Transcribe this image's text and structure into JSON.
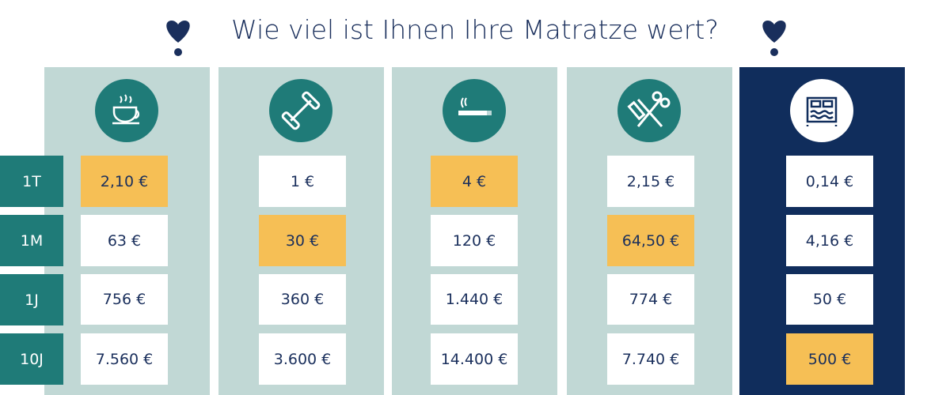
{
  "title": "Wie viel ist Ihnen Ihre Matratze wert?",
  "row_labels": [
    "1T",
    "1M",
    "1J",
    "10J"
  ],
  "highlight_color": "#f6bf55",
  "columns": [
    {
      "cells": [
        "2,10 €",
        "63 €",
        "756 €",
        "7.560 €"
      ],
      "highlighted": [
        true,
        false,
        false,
        false
      ]
    },
    {
      "cells": [
        "1 €",
        "30 €",
        "360 €",
        "3.600 €"
      ],
      "highlighted": [
        false,
        true,
        false,
        false
      ]
    },
    {
      "cells": [
        "4 €",
        "120 €",
        "1.440 €",
        "14.400 €"
      ],
      "highlighted": [
        true,
        false,
        false,
        false
      ]
    },
    {
      "cells": [
        "2,15 €",
        "64,50 €",
        "774 €",
        "7.740 €"
      ],
      "highlighted": [
        false,
        true,
        false,
        false
      ]
    },
    {
      "cells": [
        "0,14 €",
        "4,16 €",
        "50 €",
        "500 €"
      ],
      "highlighted": [
        false,
        false,
        false,
        true
      ]
    }
  ]
}
